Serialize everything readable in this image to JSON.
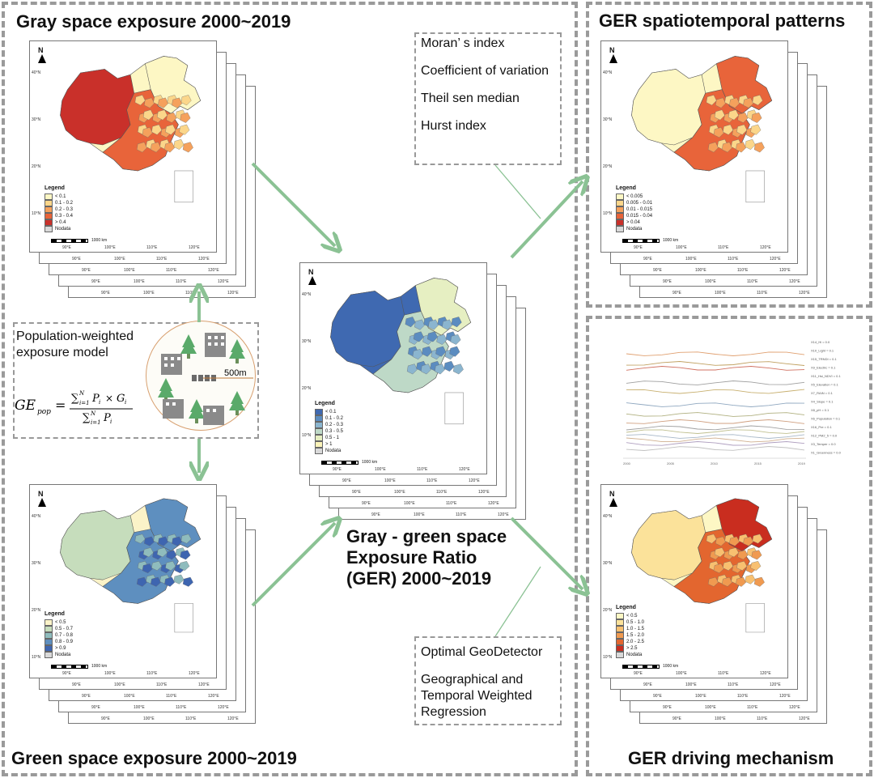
{
  "panels": {
    "gray": {
      "title": "Gray space exposure 2000~2019"
    },
    "green": {
      "title": "Green space exposure 2000~2019"
    },
    "patterns": {
      "title": "GER spatiotemporal patterns"
    },
    "driving": {
      "title": "GER driving mechanism"
    }
  },
  "center_label": {
    "line1": "Gray - green space",
    "line2": "Exposure Ratio",
    "line3": "(GER) 2000~2019"
  },
  "model": {
    "label_line1": "Population-weighted",
    "label_line2": "exposure model",
    "formula_lhs": "GE",
    "formula_sub": "pop",
    "buffer": "500m"
  },
  "methods_top": [
    "Moran’ s index",
    "Coefficient of variation",
    "Theil sen median",
    "Hurst index"
  ],
  "methods_bottom": [
    "Optimal GeoDetector",
    "Geographical and Temporal Weighted Regression"
  ],
  "maps": {
    "gray": {
      "legend_title": "Legend",
      "classes": [
        "< 0.1",
        "0.1 - 0.2",
        "0.2 - 0.3",
        "0.3 - 0.4",
        "> 0.4",
        "Nodata"
      ],
      "colors": [
        "#fdf7c4",
        "#fbd68a",
        "#f5a15c",
        "#e8643a",
        "#c9302a",
        "#d9d9d9"
      ]
    },
    "ger": {
      "legend_title": "Legend",
      "classes": [
        "< 0.1",
        "0.1 - 0.2",
        "0.2 - 0.3",
        "0.3 - 0.5",
        "0.5 - 1",
        "> 1",
        "Nodata"
      ],
      "colors": [
        "#3f69b1",
        "#5b8cc0",
        "#8bb5cf",
        "#bed9c7",
        "#e6efc2",
        "#fbf3b9",
        "#d9d9d9"
      ]
    },
    "green": {
      "legend_title": "Legend",
      "classes": [
        "< 0.5",
        "0.5 - 0.7",
        "0.7 - 0.8",
        "0.8 - 0.9",
        "> 0.9",
        "Nodata"
      ],
      "colors": [
        "#fbf3c8",
        "#c6ddbc",
        "#8fbcbd",
        "#5e8fbf",
        "#3e65b0",
        "#d9d9d9"
      ]
    },
    "patterns": {
      "legend_title": "Legend",
      "classes": [
        "< 0.005",
        "0.005 - 0.01",
        "0.01 - 0.015",
        "0.015 - 0.04",
        "> 0.04",
        "Nodata"
      ],
      "colors": [
        "#fdf7c4",
        "#fbd68a",
        "#f5a15c",
        "#e8643a",
        "#c9302a",
        "#d9d9d9"
      ]
    },
    "driving": {
      "legend_title": "Legend",
      "classes": [
        "< 0.5",
        "0.5 - 1.0",
        "1.0 - 1.5",
        "1.5 - 2.0",
        "2.0 - 2.5",
        "> 2.5",
        "Nodata"
      ],
      "colors": [
        "#fdf7c4",
        "#fbe29a",
        "#f8c070",
        "#f09a50",
        "#e3662f",
        "#c92d1f",
        "#d9d9d9"
      ]
    }
  },
  "lat_ticks": [
    "40°N",
    "30°N",
    "20°N",
    "10°N"
  ],
  "lon_ticks": [
    "90°E",
    "100°E",
    "110°E",
    "120°E"
  ],
  "north": "N",
  "scale": "1000 km",
  "chart_legend": [
    "X14_Hi = 0.0",
    "X10_Light = 0.1",
    "X15_TRNDI = 0.1",
    "X9_Electric = 0.1",
    "X11_Hsi_NDVI = 0.1",
    "X5_Elevation = 0.1",
    "X7_RAIN = 0.1",
    "X4_Slope = 0.1",
    "X8_pH = 0.1",
    "X6_Population = 0.1",
    "X16_Pre = 0.1",
    "X12_PM2_5 = 0.0",
    "X3_Temper = 0.0",
    "X1_Greenness = 0.0"
  ],
  "chart_years": [
    "2000",
    "2005",
    "2010",
    "2015",
    "2019"
  ]
}
